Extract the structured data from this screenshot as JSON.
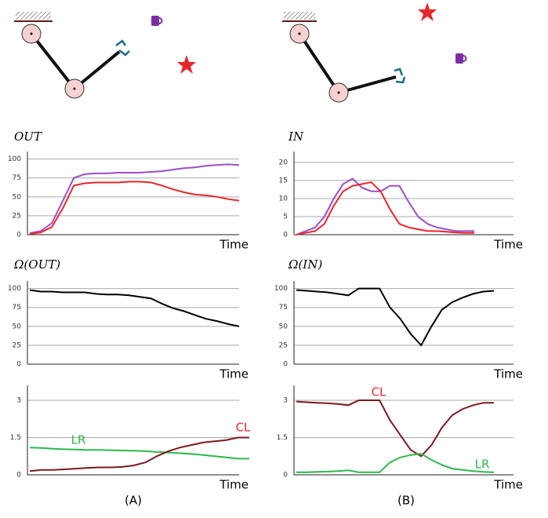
{
  "chart_data": [
    {
      "type": "line",
      "title": "OUT",
      "x_label": "Time",
      "ylim": [
        0,
        110
      ],
      "yticks": [
        0,
        25,
        50,
        75,
        100
      ],
      "grid": true,
      "series": [
        {
          "name": null,
          "color": "#9b4fc8",
          "values": [
            2,
            5,
            15,
            45,
            75,
            80,
            81,
            81,
            82,
            82,
            82,
            83,
            84,
            86,
            88,
            89,
            91,
            92,
            93,
            92
          ]
        },
        {
          "name": null,
          "color": "#e8262a",
          "values": [
            1,
            3,
            10,
            35,
            65,
            68,
            69,
            69,
            69,
            70,
            70,
            69,
            65,
            60,
            56,
            53,
            52,
            50,
            47,
            45
          ]
        }
      ]
    },
    {
      "type": "line",
      "title": "IN",
      "x_label": "Time",
      "ylim": [
        0,
        23
      ],
      "yticks": [
        0,
        5,
        10,
        15,
        20
      ],
      "grid": true,
      "series": [
        {
          "name": null,
          "color": "#9b4fc8",
          "values": [
            0,
            1,
            2,
            5,
            10,
            14,
            15.5,
            13,
            12,
            12,
            13.5,
            13.5,
            9,
            5,
            3,
            2,
            1.5,
            1,
            1,
            1
          ]
        },
        {
          "name": null,
          "color": "#e8262a",
          "values": [
            0,
            0.5,
            1,
            3,
            8,
            12,
            13.5,
            14,
            14.5,
            12,
            7,
            3,
            2,
            1.5,
            1,
            1,
            0.8,
            0.6,
            0.5,
            0.5
          ]
        }
      ]
    },
    {
      "type": "line",
      "title": "Ω(OUT)",
      "x_label": "Time",
      "ylim": [
        0,
        110
      ],
      "yticks": [
        0,
        25,
        50,
        75,
        100
      ],
      "grid": true,
      "series": [
        {
          "name": null,
          "color": "#000000",
          "values": [
            98,
            96,
            96,
            95,
            95,
            95,
            93,
            92,
            92,
            91,
            89,
            87,
            80,
            74,
            70,
            65,
            60,
            57,
            53,
            50
          ]
        }
      ]
    },
    {
      "type": "line",
      "title": "Ω(IN)",
      "x_label": "Time",
      "ylim": [
        0,
        110
      ],
      "yticks": [
        0,
        25,
        50,
        75,
        100
      ],
      "grid": true,
      "series": [
        {
          "name": null,
          "color": "#000000",
          "values": [
            98,
            97,
            96,
            95,
            93,
            91,
            100,
            100,
            100,
            75,
            60,
            40,
            25,
            50,
            72,
            82,
            88,
            93,
            96,
            97
          ]
        }
      ]
    },
    {
      "type": "line",
      "x_label": "Time",
      "ylim": [
        0,
        3.6
      ],
      "yticks": [
        0,
        1.5,
        3
      ],
      "grid": true,
      "series": [
        {
          "name": "LR",
          "color": "#2db84a",
          "values": [
            1.1,
            1.08,
            1.05,
            1.03,
            1.02,
            1.0,
            1.0,
            0.99,
            0.98,
            0.97,
            0.95,
            0.92,
            0.9,
            0.87,
            0.84,
            0.8,
            0.75,
            0.7,
            0.65,
            0.65
          ]
        },
        {
          "name": "CL",
          "color": "#7a1a1f",
          "values": [
            0.15,
            0.2,
            0.2,
            0.22,
            0.25,
            0.28,
            0.3,
            0.3,
            0.32,
            0.38,
            0.5,
            0.75,
            0.95,
            1.1,
            1.2,
            1.3,
            1.35,
            1.4,
            1.5,
            1.5
          ]
        }
      ]
    },
    {
      "type": "line",
      "x_label": "Time",
      "ylim": [
        0,
        3.6
      ],
      "yticks": [
        0,
        1.5,
        3
      ],
      "grid": true,
      "series": [
        {
          "name": "CL",
          "color": "#7a1a1f",
          "values": [
            2.95,
            2.92,
            2.9,
            2.88,
            2.85,
            2.8,
            3.0,
            3.0,
            3.0,
            2.2,
            1.6,
            1.0,
            0.75,
            1.2,
            1.9,
            2.4,
            2.65,
            2.8,
            2.9,
            2.9
          ]
        },
        {
          "name": "LR",
          "color": "#2db84a",
          "values": [
            0.1,
            0.1,
            0.12,
            0.13,
            0.15,
            0.18,
            0.1,
            0.1,
            0.1,
            0.5,
            0.7,
            0.8,
            0.85,
            0.6,
            0.4,
            0.25,
            0.2,
            0.15,
            0.12,
            0.1
          ]
        }
      ]
    }
  ],
  "panel_labels": [
    "(A)",
    "(B)"
  ]
}
